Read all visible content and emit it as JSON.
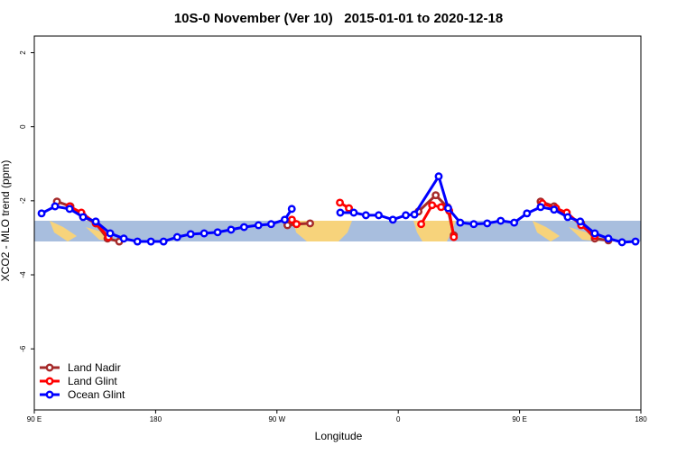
{
  "chart_data": {
    "type": "line",
    "title": "10S-0 November (Ver 10)   2015-01-01 to 2020-12-18",
    "x_label": "Longitude",
    "y_label": "XCO2 - MLO trend (ppm)",
    "xlim": [
      90,
      540
    ],
    "ylim": [
      -7.65,
      2.45
    ],
    "xticks": [
      {
        "value": 90,
        "label": "90 E"
      },
      180,
      {
        "value": 270,
        "label": "90 W"
      },
      {
        "value": 360,
        "label": "0"
      },
      {
        "value": 450,
        "label": "90 E"
      },
      {
        "value": 540,
        "label": "180"
      }
    ],
    "yticks": [
      2,
      0,
      -2,
      -4,
      -6
    ],
    "legend": "bottom-left",
    "series": [
      {
        "name": "Land Nadir",
        "color": "#a52a2a",
        "x": [
          106.8,
          116.8,
          126.2,
          135.6,
          144.3,
          153,
          null,
          277.8,
          284.5,
          294.6,
          null,
          375,
          387.8,
          396.5,
          401.2,
          null,
          465.6,
          475.6,
          485,
          495.7,
          505.8,
          515.9
        ],
        "values": [
          -2.02,
          -2.15,
          -2.42,
          -2.61,
          -3.02,
          -3.1,
          null,
          -2.66,
          -2.63,
          -2.61,
          null,
          -2.29,
          -1.85,
          -2.17,
          -2.93,
          null,
          -2.02,
          -2.15,
          -2.37,
          -2.61,
          -3.02,
          -3.07
        ]
      },
      {
        "name": "Land Glint",
        "color": "#ff0000",
        "x": [
          116.2,
          124.9,
          135.6,
          145,
          null,
          281.1,
          284.5,
          null,
          316.7,
          323.4,
          null,
          377,
          385.1,
          391.8,
          397.8,
          401.2,
          null,
          466.9,
          477,
          485,
          495.7,
          505.8
        ],
        "values": [
          -2.15,
          -2.32,
          -2.61,
          -2.98,
          null,
          -2.51,
          -2.63,
          null,
          -2.05,
          -2.2,
          null,
          -2.63,
          -2.12,
          -2.17,
          -2.27,
          -2.98,
          null,
          -2.07,
          -2.2,
          -2.32,
          -2.66,
          -2.95
        ]
      },
      {
        "name": "Ocean Glint",
        "color": "#0000ff",
        "x": [
          95.4,
          105.4,
          116.2,
          126.2,
          135.6,
          146.3,
          156.4,
          166.5,
          176.5,
          185.9,
          196,
          206,
          216,
          226,
          236,
          245.6,
          256.3,
          265.7,
          275.8,
          281,
          null,
          317,
          327,
          336,
          345.5,
          356,
          365.6,
          372,
          390,
          397,
          406,
          416,
          426,
          436,
          446,
          455.5,
          465.6,
          475.6,
          485.7,
          495,
          505.8,
          515.9,
          526,
          536
        ],
        "values": [
          -2.34,
          -2.15,
          -2.22,
          -2.44,
          -2.56,
          -2.88,
          -3.02,
          -3.1,
          -3.1,
          -3.1,
          -2.98,
          -2.9,
          -2.88,
          -2.85,
          -2.78,
          -2.71,
          -2.66,
          -2.63,
          -2.51,
          -2.22,
          null,
          -2.32,
          -2.32,
          -2.39,
          -2.39,
          -2.51,
          -2.39,
          -2.37,
          -1.34,
          -2.2,
          -2.59,
          -2.63,
          -2.61,
          -2.54,
          -2.59,
          -2.34,
          -2.17,
          -2.24,
          -2.44,
          -2.56,
          -2.88,
          -3.02,
          -3.12,
          -3.1
        ]
      }
    ]
  }
}
